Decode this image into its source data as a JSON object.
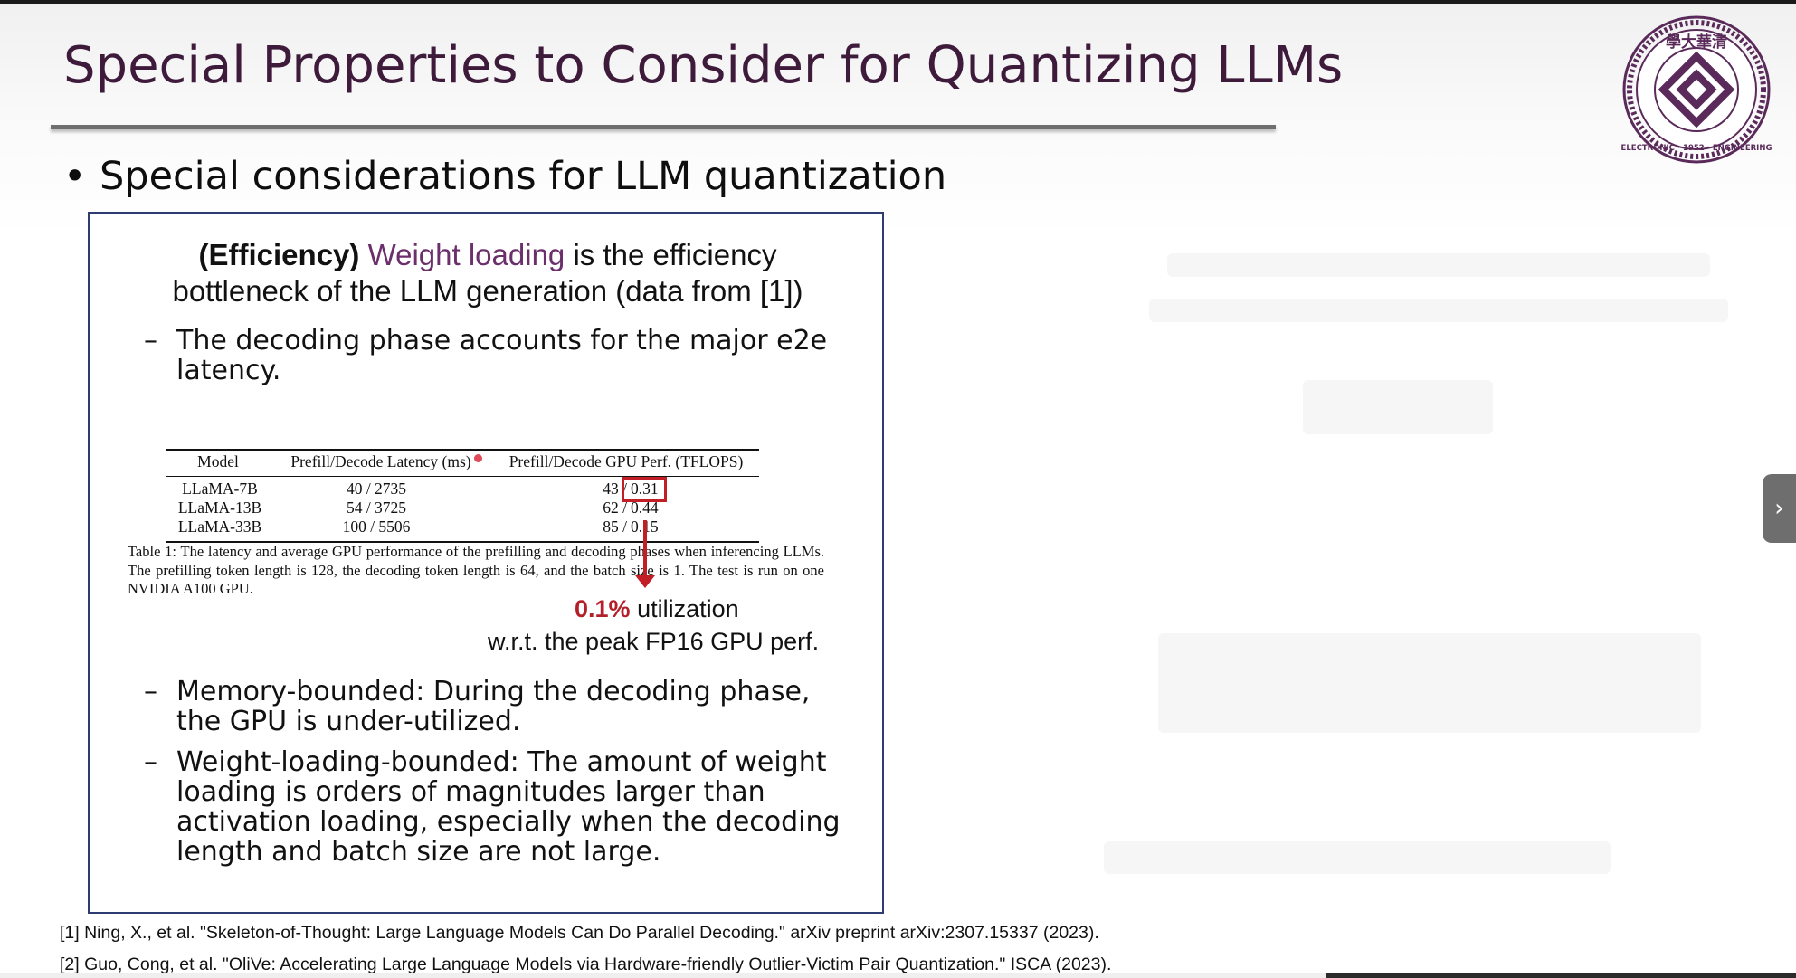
{
  "slide": {
    "title": "Special Properties to Consider for Quantizing LLMs",
    "bullet": "Special considerations for LLM quantization",
    "logo_text": "ELECTRONIC · 1952 · ENGINEERING",
    "logo_top_chars": "學大華清",
    "panel": {
      "headline_bold": "(Efficiency)",
      "headline_accent": "Weight loading",
      "headline_rest_line1": "is the efficiency",
      "headline_line2": "bottleneck of the LLM generation (data from [1])",
      "items": [
        {
          "dash": "–",
          "line1": "The decoding phase accounts for the major e2e",
          "line2": "latency."
        },
        {
          "dash": "–",
          "line1": "Memory-bounded: During the decoding phase,",
          "line2": "the GPU is under-utilized."
        },
        {
          "dash": "–",
          "line1": "Weight-loading-bounded: The amount of weight",
          "line2": "loading is orders of magnitudes larger than",
          "line3": "activation loading, especially when the decoding",
          "line4": "length and batch size are not large."
        }
      ],
      "table": {
        "headers": [
          "Model",
          "Prefill/Decode Latency (ms)",
          "Prefill/Decode GPU Perf. (TFLOPS)"
        ],
        "rows": [
          {
            "model": "LLaMA-7B",
            "latency": "40 / 2735",
            "perf_prefix": "43 /",
            "perf_value": "0.31"
          },
          {
            "model": "LLaMA-13B",
            "latency": "54 / 3725",
            "perf_prefix": "62 /",
            "perf_value": "0.44"
          },
          {
            "model": "LLaMA-33B",
            "latency": "100 / 5506",
            "perf_prefix": "85 /",
            "perf_value": "0.15"
          }
        ],
        "caption": "Table 1: The latency and average GPU performance of the prefilling and decoding phases when inferencing LLMs. The prefilling token length is 128, the decoding token length is 64, and the batch size is 1. The test is run on one NVIDIA A100 GPU."
      },
      "annotation": {
        "percent": "0.1%",
        "word": "utilization",
        "line2": "w.r.t. the peak FP16 GPU perf."
      }
    },
    "references": [
      "[1] Ning, X., et al. \"Skeleton-of-Thought: Large Language Models Can Do Parallel Decoding.\" arXiv preprint arXiv:2307.15337 (2023).",
      "[2] Guo, Cong, et al. \"OliVe: Accelerating Large Language Models via Hardware-friendly Outlier-Victim Pair Quantization.\" ISCA (2023)."
    ]
  },
  "viewer": {
    "next_icon": "›"
  },
  "colors": {
    "title": "#3e1a3b",
    "accent": "#6b2f6b",
    "highlight": "#c21e25",
    "panel_border": "#2e3c72"
  }
}
